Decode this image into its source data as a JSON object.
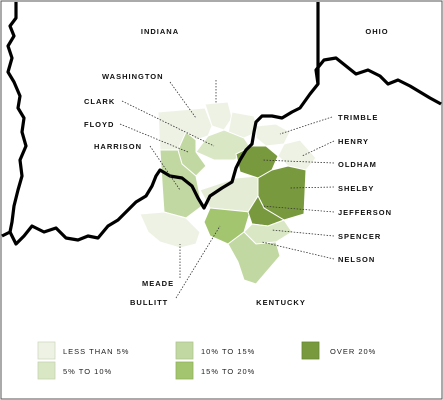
{
  "states": {
    "indiana": "INDIANA",
    "ohio": "OHIO",
    "kentucky": "KENTUCKY"
  },
  "counties": {
    "washington": "WASHINGTON",
    "clark": "CLARK",
    "floyd": "FLOYD",
    "harrison": "HARRISON",
    "meade": "MEADE",
    "bullitt": "BULLITT",
    "trimble": "TRIMBLE",
    "henry": "HENRY",
    "oldham": "OLDHAM",
    "shelby": "SHELBY",
    "jefferson": "JEFFERSON",
    "spencer": "SPENCER",
    "nelson": "NELSON"
  },
  "legend": {
    "items": [
      {
        "label": "LESS THAN 5%",
        "color": "#eef2e4"
      },
      {
        "label": "5% TO 10%",
        "color": "#d9e7c4"
      },
      {
        "label": "10% TO 15%",
        "color": "#c2d8a2"
      },
      {
        "label": "15% TO 20%",
        "color": "#a3c56f"
      },
      {
        "label": "OVER 20%",
        "color": "#79993f"
      }
    ]
  },
  "county_categories": {
    "washington": "LESS THAN 5%",
    "clark": "5% TO 10%",
    "floyd": "10% TO 15%",
    "harrison": "10% TO 15%",
    "meade": "LESS THAN 5%",
    "bullitt": "15% TO 20%",
    "trimble": "LESS THAN 5%",
    "henry": "LESS THAN 5%",
    "oldham": "OVER 20%",
    "shelby": "OVER 20%",
    "jefferson": "OVER 20%",
    "spencer": "OVER 20%",
    "nelson": "10% TO 15%"
  }
}
